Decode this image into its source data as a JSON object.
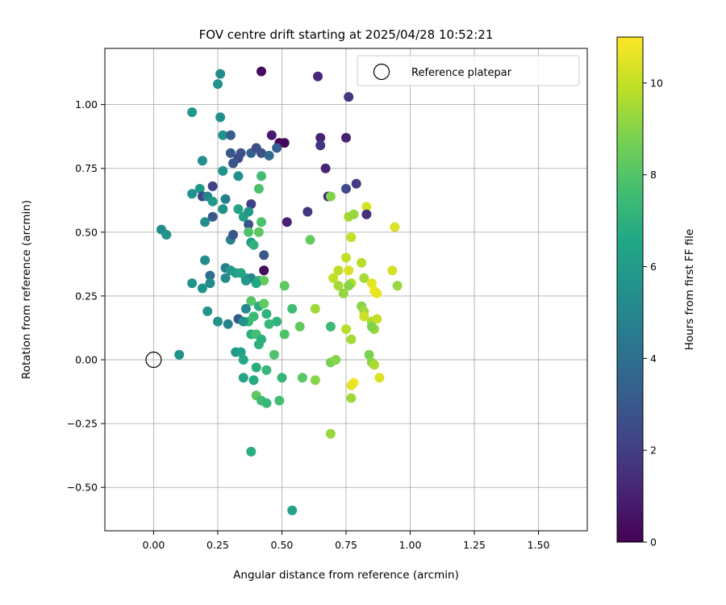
{
  "chart_data": {
    "type": "scatter",
    "title": "FOV centre drift starting at 2025/04/28 10:52:21",
    "xlabel": "Angular distance from reference (arcmin)",
    "ylabel": "Rotation from reference (arcmin)",
    "xlim": [
      -0.19,
      1.69
    ],
    "ylim": [
      -0.67,
      1.22
    ],
    "x_ticks": [
      0.0,
      0.25,
      0.5,
      0.75,
      1.0,
      1.25,
      1.5
    ],
    "x_tick_labels": [
      "0.00",
      "0.25",
      "0.50",
      "0.75",
      "1.00",
      "1.25",
      "1.50"
    ],
    "y_ticks": [
      -0.5,
      -0.25,
      0.0,
      0.25,
      0.5,
      0.75,
      1.0
    ],
    "y_tick_labels": [
      "−0.50",
      "−0.25",
      "0.00",
      "0.25",
      "0.50",
      "0.75",
      "1.00"
    ],
    "grid": true,
    "legend": {
      "position": "top-right",
      "entries": [
        {
          "label": "Reference platepar",
          "marker": "open-circle",
          "x": 0.0,
          "y": 0.0
        }
      ]
    },
    "colorbar": {
      "label": "Hours from first FF file",
      "range": [
        0,
        11
      ],
      "ticks": [
        0,
        2,
        4,
        6,
        8,
        10
      ],
      "tick_labels": [
        "0",
        "2",
        "4",
        "6",
        "8",
        "10"
      ],
      "colormap": "viridis"
    },
    "points": [
      [
        0.42,
        1.13,
        0.3
      ],
      [
        0.64,
        1.11,
        1.2
      ],
      [
        0.76,
        1.03,
        1.8
      ],
      [
        0.26,
        1.12,
        5.3
      ],
      [
        0.25,
        1.08,
        5.6
      ],
      [
        0.15,
        0.97,
        5.9
      ],
      [
        0.26,
        0.95,
        5.5
      ],
      [
        0.27,
        0.88,
        5.7
      ],
      [
        0.3,
        0.88,
        3.2
      ],
      [
        0.46,
        0.88,
        0.8
      ],
      [
        0.49,
        0.85,
        0.1
      ],
      [
        0.51,
        0.85,
        0.2
      ],
      [
        0.65,
        0.87,
        1.1
      ],
      [
        0.75,
        0.87,
        1.0
      ],
      [
        0.3,
        0.81,
        3.0
      ],
      [
        0.34,
        0.81,
        2.8
      ],
      [
        0.38,
        0.81,
        3.4
      ],
      [
        0.4,
        0.83,
        2.6
      ],
      [
        0.42,
        0.81,
        2.7
      ],
      [
        0.45,
        0.8,
        3.8
      ],
      [
        0.48,
        0.83,
        3.3
      ],
      [
        0.33,
        0.79,
        2.5
      ],
      [
        0.65,
        0.84,
        1.7
      ],
      [
        0.19,
        0.78,
        5.4
      ],
      [
        0.31,
        0.77,
        2.9
      ],
      [
        0.27,
        0.74,
        5.6
      ],
      [
        0.33,
        0.72,
        5.4
      ],
      [
        0.42,
        0.72,
        7.6
      ],
      [
        0.67,
        0.75,
        1.1
      ],
      [
        0.79,
        0.69,
        1.9
      ],
      [
        0.15,
        0.65,
        5.6
      ],
      [
        0.18,
        0.67,
        5.8
      ],
      [
        0.19,
        0.64,
        2.4
      ],
      [
        0.23,
        0.68,
        2.2
      ],
      [
        0.21,
        0.64,
        5.0
      ],
      [
        0.23,
        0.62,
        5.9
      ],
      [
        0.28,
        0.63,
        4.7
      ],
      [
        0.38,
        0.61,
        2.1
      ],
      [
        0.41,
        0.67,
        7.8
      ],
      [
        0.68,
        0.64,
        1.2
      ],
      [
        0.69,
        0.64,
        8.9
      ],
      [
        0.75,
        0.67,
        2.5
      ],
      [
        0.83,
        0.6,
        10.3
      ],
      [
        0.83,
        0.57,
        1.5
      ],
      [
        0.23,
        0.56,
        3.0
      ],
      [
        0.27,
        0.59,
        5.6
      ],
      [
        0.33,
        0.59,
        6.4
      ],
      [
        0.35,
        0.56,
        6.2
      ],
      [
        0.37,
        0.58,
        5.8
      ],
      [
        0.42,
        0.54,
        7.8
      ],
      [
        0.52,
        0.54,
        1.0
      ],
      [
        0.6,
        0.58,
        1.7
      ],
      [
        0.76,
        0.56,
        9.5
      ],
      [
        0.78,
        0.57,
        9.3
      ],
      [
        0.94,
        0.52,
        10.4
      ],
      [
        0.2,
        0.54,
        5.4
      ],
      [
        0.37,
        0.53,
        2.8
      ],
      [
        0.37,
        0.5,
        7.9
      ],
      [
        0.41,
        0.5,
        8.2
      ],
      [
        0.03,
        0.51,
        5.3
      ],
      [
        0.05,
        0.49,
        5.6
      ],
      [
        0.3,
        0.47,
        4.9
      ],
      [
        0.31,
        0.49,
        2.9
      ],
      [
        0.38,
        0.46,
        6.1
      ],
      [
        0.39,
        0.45,
        7.1
      ],
      [
        0.61,
        0.47,
        8.4
      ],
      [
        0.77,
        0.48,
        10.0
      ],
      [
        0.43,
        0.41,
        3.1
      ],
      [
        0.2,
        0.39,
        5.3
      ],
      [
        0.28,
        0.36,
        4.7
      ],
      [
        0.3,
        0.35,
        5.9
      ],
      [
        0.32,
        0.34,
        6.1
      ],
      [
        0.34,
        0.34,
        6.4
      ],
      [
        0.36,
        0.32,
        6.7
      ],
      [
        0.38,
        0.32,
        4.9
      ],
      [
        0.41,
        0.31,
        7.2
      ],
      [
        0.43,
        0.31,
        8.4
      ],
      [
        0.43,
        0.35,
        0.3
      ],
      [
        0.22,
        0.33,
        4.0
      ],
      [
        0.28,
        0.32,
        5.2
      ],
      [
        0.75,
        0.4,
        10.0
      ],
      [
        0.81,
        0.38,
        9.8
      ],
      [
        0.93,
        0.35,
        10.3
      ],
      [
        0.72,
        0.35,
        9.9
      ],
      [
        0.76,
        0.35,
        10.4
      ],
      [
        0.7,
        0.32,
        10.0
      ],
      [
        0.77,
        0.3,
        9.7
      ],
      [
        0.82,
        0.32,
        9.5
      ],
      [
        0.85,
        0.3,
        10.6
      ],
      [
        0.86,
        0.27,
        10.8
      ],
      [
        0.87,
        0.26,
        10.6
      ],
      [
        0.72,
        0.29,
        9.5
      ],
      [
        0.76,
        0.29,
        9.0
      ],
      [
        0.95,
        0.29,
        9.3
      ],
      [
        0.15,
        0.3,
        5.7
      ],
      [
        0.19,
        0.28,
        5.6
      ],
      [
        0.22,
        0.3,
        5.3
      ],
      [
        0.36,
        0.31,
        5.9
      ],
      [
        0.4,
        0.3,
        6.6
      ],
      [
        0.51,
        0.29,
        8.2
      ],
      [
        0.38,
        0.23,
        8.0
      ],
      [
        0.41,
        0.21,
        6.8
      ],
      [
        0.43,
        0.22,
        8.3
      ],
      [
        0.44,
        0.18,
        7.1
      ],
      [
        0.36,
        0.2,
        5.2
      ],
      [
        0.39,
        0.17,
        7.5
      ],
      [
        0.37,
        0.15,
        7.4
      ],
      [
        0.48,
        0.15,
        7.1
      ],
      [
        0.54,
        0.2,
        7.6
      ],
      [
        0.63,
        0.2,
        9.4
      ],
      [
        0.74,
        0.26,
        9.2
      ],
      [
        0.81,
        0.21,
        9.0
      ],
      [
        0.82,
        0.19,
        9.4
      ],
      [
        0.82,
        0.17,
        10.2
      ],
      [
        0.85,
        0.15,
        9.6
      ],
      [
        0.86,
        0.12,
        9.3
      ],
      [
        0.87,
        0.16,
        10.0
      ],
      [
        0.21,
        0.19,
        5.7
      ],
      [
        0.25,
        0.15,
        5.6
      ],
      [
        0.29,
        0.14,
        4.9
      ],
      [
        0.33,
        0.16,
        3.1
      ],
      [
        0.35,
        0.15,
        5.6
      ],
      [
        0.38,
        0.1,
        7.0
      ],
      [
        0.4,
        0.1,
        7.7
      ],
      [
        0.42,
        0.08,
        6.9
      ],
      [
        0.45,
        0.14,
        7.3
      ],
      [
        0.51,
        0.1,
        7.9
      ],
      [
        0.57,
        0.13,
        8.3
      ],
      [
        0.69,
        0.13,
        7.4
      ],
      [
        0.75,
        0.12,
        9.8
      ],
      [
        0.77,
        0.08,
        9.5
      ],
      [
        0.85,
        0.13,
        8.9
      ],
      [
        0.1,
        0.02,
        5.6
      ],
      [
        0.32,
        0.03,
        5.8
      ],
      [
        0.34,
        0.03,
        6.2
      ],
      [
        0.35,
        0.0,
        6.5
      ],
      [
        0.41,
        0.06,
        7.0
      ],
      [
        0.47,
        0.02,
        7.9
      ],
      [
        0.4,
        -0.03,
        6.8
      ],
      [
        0.44,
        -0.04,
        7.3
      ],
      [
        0.84,
        0.02,
        8.8
      ],
      [
        0.85,
        -0.01,
        9.1
      ],
      [
        0.86,
        -0.02,
        9.6
      ],
      [
        0.69,
        -0.01,
        8.7
      ],
      [
        0.71,
        0.0,
        9.0
      ],
      [
        0.35,
        -0.07,
        6.4
      ],
      [
        0.39,
        -0.08,
        6.7
      ],
      [
        0.5,
        -0.07,
        7.2
      ],
      [
        0.58,
        -0.07,
        8.1
      ],
      [
        0.63,
        -0.08,
        9.0
      ],
      [
        0.78,
        -0.09,
        10.8
      ],
      [
        0.77,
        -0.1,
        10.6
      ],
      [
        0.88,
        -0.07,
        10.4
      ],
      [
        0.4,
        -0.14,
        8.2
      ],
      [
        0.42,
        -0.16,
        7.5
      ],
      [
        0.44,
        -0.17,
        7.3
      ],
      [
        0.49,
        -0.16,
        7.6
      ],
      [
        0.77,
        -0.15,
        9.4
      ],
      [
        0.69,
        -0.29,
        9.3
      ],
      [
        0.38,
        -0.36,
        6.8
      ],
      [
        0.54,
        -0.59,
        6.3
      ]
    ]
  }
}
